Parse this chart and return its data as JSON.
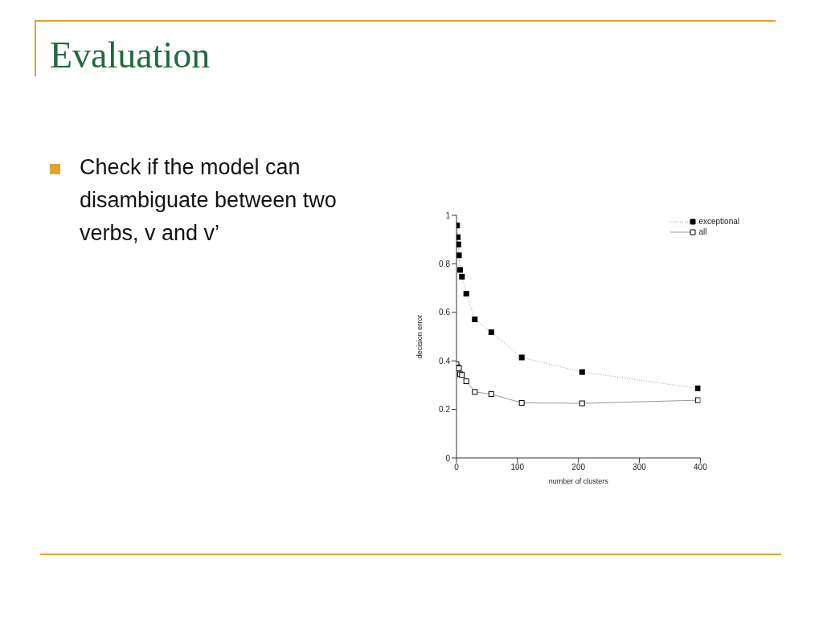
{
  "chart_data": {
    "type": "line",
    "title": "Evaluation",
    "annotations": [
      "Check if the model can disambiguate between two verbs, v and v’"
    ],
    "xlabel": "number of clusters",
    "ylabel": "decision error",
    "series": [
      {
        "name": "exceptional",
        "color": "#000000",
        "line_style": "dotted",
        "x": [
          1,
          2,
          1,
          3,
          4,
          6,
          9,
          16,
          30,
          57,
          107,
          206,
          396
        ],
        "values": [
          0.958,
          0.91,
          0.88,
          0.88,
          0.835,
          0.775,
          0.747,
          0.677,
          0.571,
          0.518,
          0.414,
          0.354,
          0.287
        ]
      },
      {
        "name": "all",
        "color": "#000000",
        "line_style": "solid",
        "x": [
          0,
          2,
          4,
          6,
          9,
          16,
          30,
          57,
          107,
          206,
          396
        ],
        "values": [
          0.386,
          0.373,
          0.37,
          0.345,
          0.342,
          0.316,
          0.272,
          0.263,
          0.227,
          0.225,
          0.238
        ]
      }
    ],
    "marker": "square",
    "xlim": [
      0,
      400
    ],
    "xticks": [
      0,
      100,
      200,
      300,
      400
    ],
    "ylim": [
      0,
      1
    ],
    "yticks": [
      0,
      0.2,
      0.4,
      0.6,
      0.8,
      1
    ],
    "grid": false,
    "legend": "top right"
  }
}
